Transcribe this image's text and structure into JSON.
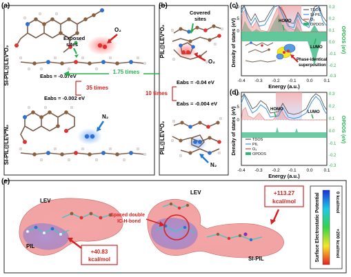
{
  "panels": {
    "a": {
      "label": "(a)",
      "side_top": "SI-PIL@LEV*O₂",
      "side_bottom": "SI-PIL@LEV*N₂",
      "exposed": "Exposed",
      "sites": "sites",
      "o2": "O₂",
      "n2": "N₂",
      "eabs_top": "Eabs = -0.07eV",
      "eabs_bottom": "Eabs = -0.002 eV",
      "ratio": "35 times"
    },
    "b": {
      "label": "(b)",
      "side_top": "PIL@LEV*O₂",
      "side_bottom": "PIL@LEV*O₂",
      "covered": "Covered",
      "sites": "sites",
      "o2": "O₂",
      "n2": "N₂",
      "eabs_top": "Eabs = -0.04 eV",
      "eabs_bottom": "Eabs = -0.004 eV",
      "ratio": "10 times"
    },
    "between": {
      "ratio": "1.75 times"
    },
    "c": {
      "label": "(c)",
      "ylabel": "Density of states (eV)",
      "y2label": "OPDOS (eV)",
      "xlabel": "Energy (a.u.)",
      "legend": [
        "TDOS",
        "SI-PIL",
        "O₂",
        "OPDOS"
      ],
      "homo": "HOMO",
      "lumo": "LUMO",
      "note": "Phase-identical",
      "note2": "superposition",
      "yticks": [
        "10",
        "5",
        "0"
      ],
      "y2ticks": [
        "0.3",
        "0.2",
        "0.1",
        "0.0",
        "-0.1",
        "-0.2",
        "-0.3"
      ],
      "xticks": [
        "-0.4",
        "-0.3",
        "-0.2",
        "-0.1",
        "0.0",
        "0.1"
      ]
    },
    "d": {
      "label": "(d)",
      "ylabel": "Density of states (eV)",
      "y2label": "OPDOS (eV)",
      "xlabel": "Energy (a.u.)",
      "legend": [
        "TDOS",
        "PIL",
        "O₂",
        "OPDOS"
      ],
      "homo": "HOMO",
      "lumo": "LUMO",
      "yticks": [
        "10",
        "5",
        "0"
      ],
      "y2ticks": [
        "0.3",
        "0.2",
        "0.1",
        "0.0",
        "-0.1",
        "-0.2",
        "-0.3"
      ],
      "xticks": [
        "-0.4",
        "-0.3",
        "-0.2",
        "-0.1",
        "0.0",
        "0.1"
      ]
    },
    "e": {
      "label": "(e)",
      "lev_left": "LEV",
      "pil_left": "PIL",
      "val_left_1": "+40.83",
      "val_left_2": "kcal/mol",
      "lev_right": "LEV",
      "sipil_right": "SI-PIL",
      "val_right_1": "+113.27",
      "val_right_2": "kcal/mol",
      "spaced_1": "Spaced double",
      "spaced_2": "IC-H-bond",
      "colorbar_title": "Surface Electrostatic Potential",
      "cb_top": "0 kcal/mol",
      "cb_bottom": "+200 kcal/mol"
    }
  },
  "colors": {
    "tdos": "#555555",
    "pil": "#3b8fd9",
    "o2": "#e23a3a",
    "opdos": "#2db57a",
    "red_accent": "#d82020",
    "green_accent": "#22b14c",
    "blue_accent": "#1f78d1"
  }
}
